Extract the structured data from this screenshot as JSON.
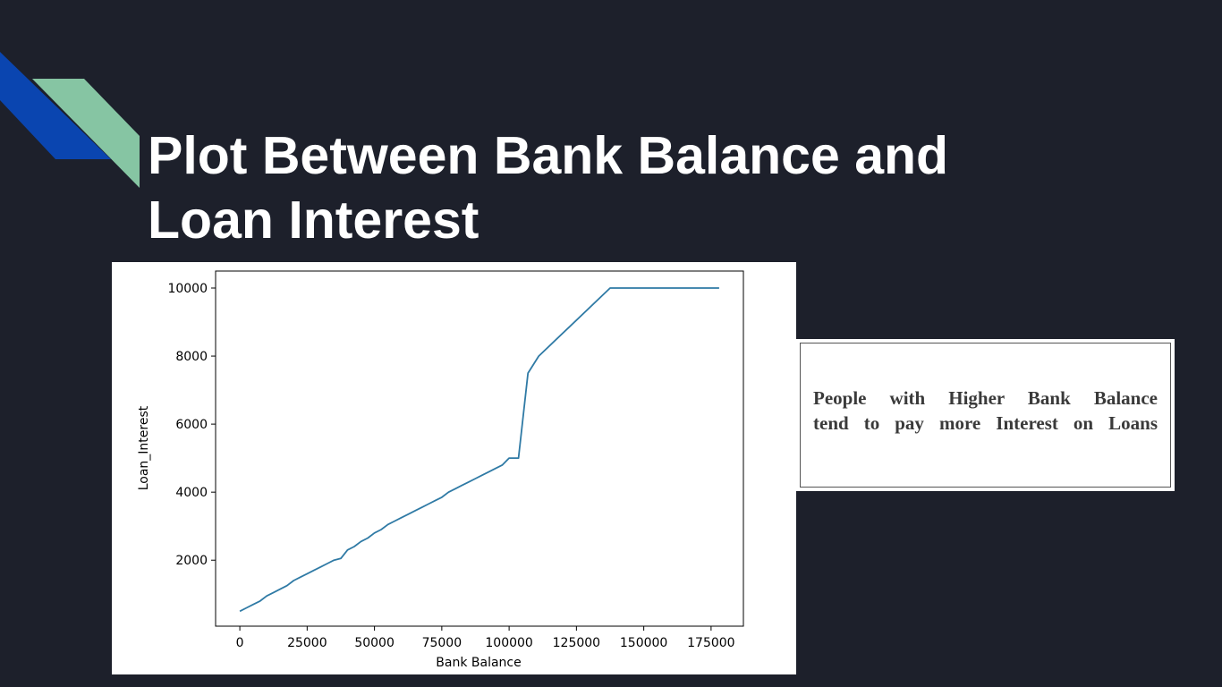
{
  "slide": {
    "title_line1": "Plot Between Bank Balance and",
    "title_line2": "Loan Interest",
    "background_color": "#1d202b",
    "accent_colors": [
      "#0a45b0",
      "#86c5a3"
    ]
  },
  "note": {
    "line1": "People with Higher Bank Balance",
    "line2": "tend to pay more Interest on Loans"
  },
  "chart_data": {
    "type": "line",
    "title": "",
    "xlabel": "Bank Balance",
    "ylabel": "Loan_Interest",
    "xlim": [
      -9000,
      187000
    ],
    "ylim": [
      60,
      10500
    ],
    "xticks": [
      0,
      25000,
      50000,
      75000,
      100000,
      125000,
      150000,
      175000
    ],
    "yticks": [
      2000,
      4000,
      6000,
      8000,
      10000
    ],
    "grid": false,
    "line_color": "#2f7aa5",
    "series": [
      {
        "x": [
          0,
          2500,
          5000,
          7500,
          10000,
          12500,
          15000,
          17500,
          20000,
          22500,
          25000,
          27500,
          30000,
          32500,
          35000,
          37500,
          40000,
          42500,
          45000,
          47500,
          50000,
          52500,
          55000,
          57500,
          60000,
          62500,
          65000,
          67500,
          70000,
          72500,
          75000,
          77500,
          80000,
          82500,
          85000,
          87500,
          90000,
          92500,
          95000,
          97500,
          100000,
          103500,
          107000,
          111000,
          137500,
          178000
        ],
        "y": [
          500,
          600,
          700,
          800,
          950,
          1050,
          1150,
          1250,
          1400,
          1500,
          1600,
          1700,
          1800,
          1900,
          2000,
          2050,
          2300,
          2400,
          2550,
          2650,
          2800,
          2900,
          3050,
          3150,
          3250,
          3350,
          3450,
          3550,
          3650,
          3750,
          3850,
          4000,
          4100,
          4200,
          4300,
          4400,
          4500,
          4600,
          4700,
          4800,
          5000,
          5000,
          7500,
          8000,
          10000,
          10000
        ]
      }
    ]
  }
}
